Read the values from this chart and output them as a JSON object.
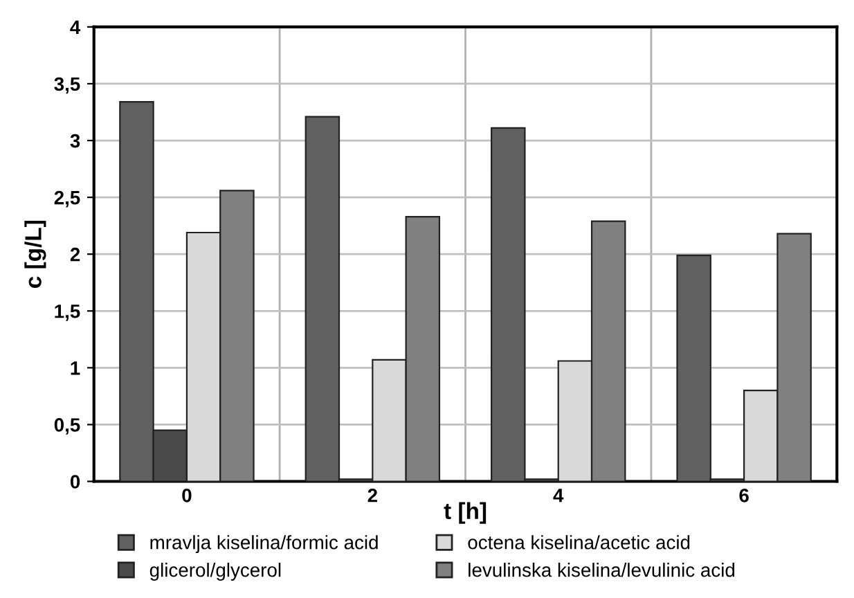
{
  "chart_data": {
    "type": "bar",
    "xlabel": "t [h]",
    "ylabel": "c [g/L]",
    "categories": [
      "0",
      "2",
      "4",
      "6"
    ],
    "series": [
      {
        "name": "mravlja kiselina/formic acid",
        "color": "#606060",
        "values": [
          3.34,
          3.21,
          3.11,
          1.99
        ]
      },
      {
        "name": "glicerol/glycerol",
        "color": "#4a4a4a",
        "values": [
          0.45,
          0.02,
          0.02,
          0.02
        ]
      },
      {
        "name": "octena kiselina/acetic acid",
        "color": "#d9d9d9",
        "values": [
          2.19,
          1.07,
          1.06,
          0.8
        ]
      },
      {
        "name": "levulinska kiselina/levulinic acid",
        "color": "#808080",
        "values": [
          2.56,
          2.33,
          2.29,
          2.18
        ]
      }
    ],
    "ylim": [
      0,
      4
    ],
    "yticks": [
      0,
      {
        "value": 0.5,
        "label": "0,5"
      },
      1,
      {
        "value": 1.5,
        "label": "1,5"
      },
      2,
      {
        "value": 2.5,
        "label": "2,5"
      },
      3,
      {
        "value": 3.5,
        "label": "3,5"
      },
      4
    ],
    "grid": true,
    "legend": "bottom"
  }
}
